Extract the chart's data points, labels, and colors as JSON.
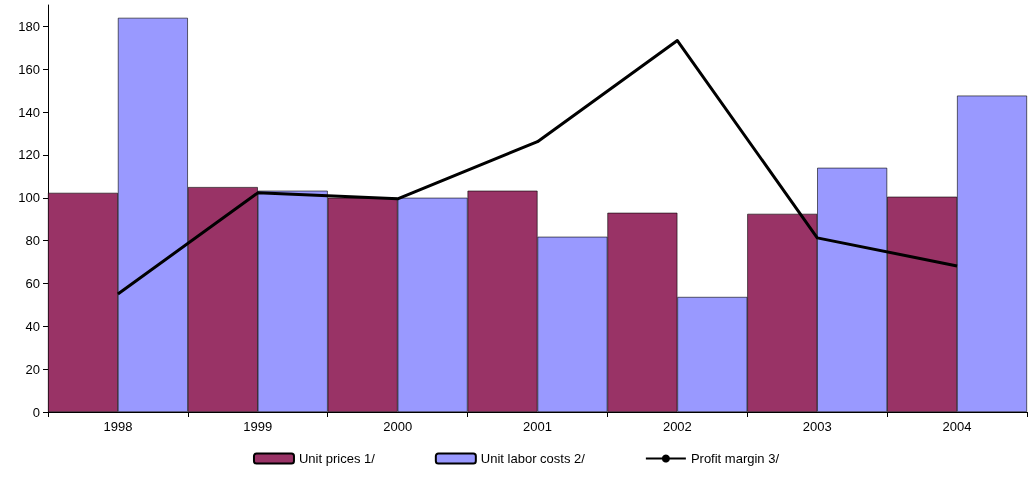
{
  "chart_data": {
    "type": "bar",
    "categories": [
      "1998",
      "1999",
      "2000",
      "2001",
      "2002",
      "2003",
      "2004"
    ],
    "series": [
      {
        "name": "Unit prices 1/",
        "color": "#993366",
        "values": [
          102.3,
          105,
          100,
          103.3,
          93,
          92.5,
          100.5
        ]
      },
      {
        "name": "Unit labor costs 2/",
        "color": "#9999ff",
        "values": [
          184,
          103.3,
          100,
          81.8,
          53.7,
          114,
          147.7
        ]
      },
      {
        "name": "Profit margin 3/",
        "type": "line",
        "color": "#000000",
        "values": [
          55.1,
          102.3,
          99.5,
          126.2,
          173.4,
          81.3,
          68.2
        ]
      }
    ],
    "ylim": [
      0,
      190
    ],
    "yticks": [
      0,
      20,
      40,
      60,
      80,
      100,
      120,
      140,
      160,
      180
    ],
    "grid": false,
    "legend": "bottom",
    "marker": "none"
  }
}
